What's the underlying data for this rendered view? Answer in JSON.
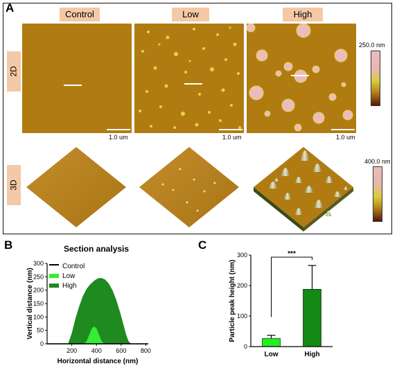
{
  "panel_a": {
    "letter": "A",
    "columns": [
      "Control",
      "Low",
      "High"
    ],
    "rows": [
      "2D",
      "3D"
    ],
    "scale_bar": "1.0 um",
    "colorbar_2d": "250.0 nm",
    "colorbar_3d": "400.0 nm"
  },
  "panel_b": {
    "letter": "B",
    "title": "Section analysis",
    "ylabel": "Vertical distance (nm)",
    "xlabel": "Horizontal distance (nm)",
    "x_ticks": [
      "200",
      "400",
      "600",
      "800"
    ],
    "y_ticks": [
      "0",
      "50",
      "100",
      "150",
      "200",
      "250",
      "300"
    ],
    "legend": [
      "Control",
      "Low",
      "High"
    ]
  },
  "panel_c": {
    "letter": "C",
    "ylabel": "Particle peak height (nm)",
    "categories": [
      "Low",
      "High"
    ],
    "y_ticks": [
      "0",
      "100",
      "200",
      "300"
    ],
    "significance": "***"
  },
  "chart_data": [
    {
      "type": "area",
      "title": "Section analysis",
      "xlabel": "Horizontal distance (nm)",
      "ylabel": "Vertical distance (nm)",
      "xlim": [
        0,
        820
      ],
      "ylim": [
        0,
        300
      ],
      "legend_position": "top-left",
      "series": [
        {
          "name": "Control",
          "color": "#000000",
          "x": [
            0,
            820
          ],
          "y": [
            0,
            0
          ]
        },
        {
          "name": "High",
          "color": "#1f8a1f",
          "x": [
            0,
            170,
            200,
            230,
            260,
            290,
            320,
            350,
            380,
            410,
            440,
            470,
            500,
            530,
            560,
            590,
            620,
            640,
            660,
            680,
            820
          ],
          "y": [
            0,
            0,
            40,
            95,
            140,
            178,
            205,
            222,
            235,
            244,
            246,
            240,
            225,
            200,
            165,
            120,
            70,
            35,
            10,
            0,
            0
          ]
        },
        {
          "name": "Low",
          "color": "#33ee33",
          "x": [
            0,
            300,
            320,
            340,
            360,
            380,
            400,
            420,
            440,
            460,
            820
          ],
          "y": [
            0,
            0,
            10,
            32,
            55,
            65,
            58,
            35,
            12,
            0,
            0
          ]
        }
      ]
    },
    {
      "type": "bar",
      "ylabel": "Particle peak height (nm)",
      "categories": [
        "Low",
        "High"
      ],
      "values": [
        27,
        188
      ],
      "error": [
        10,
        78
      ],
      "colors": [
        "#22ee22",
        "#148a14"
      ],
      "ylim": [
        0,
        300
      ],
      "annotation": "***"
    }
  ]
}
